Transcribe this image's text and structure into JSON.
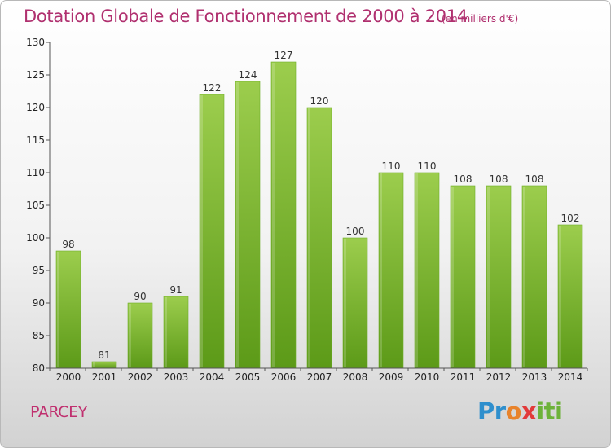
{
  "title": "Dotation Globale de Fonctionnement de 2000 à 2014",
  "subtitle": "(en milliers d'€)",
  "commune": "PARCEY",
  "logo": {
    "p1": "Pr",
    "p2": "o",
    "p3": "x",
    "p4": "iti"
  },
  "colors": {
    "accent": "#b0306f",
    "bar_top": "#9ccd4d",
    "bar_bottom": "#5c9a18"
  },
  "chart_data": {
    "type": "bar",
    "title": "Dotation Globale de Fonctionnement de 2000 à 2014",
    "subtitle": "(en milliers d'€)",
    "xlabel": "",
    "ylabel": "",
    "categories": [
      "2000",
      "2001",
      "2002",
      "2003",
      "2004",
      "2005",
      "2006",
      "2007",
      "2008",
      "2009",
      "2010",
      "2011",
      "2012",
      "2013",
      "2014"
    ],
    "values": [
      98,
      81,
      90,
      91,
      122,
      124,
      127,
      120,
      100,
      110,
      110,
      108,
      108,
      108,
      102
    ],
    "ylim": [
      80,
      130
    ],
    "yticks": [
      80,
      85,
      90,
      95,
      100,
      105,
      110,
      115,
      120,
      125,
      130
    ],
    "grid": false
  }
}
